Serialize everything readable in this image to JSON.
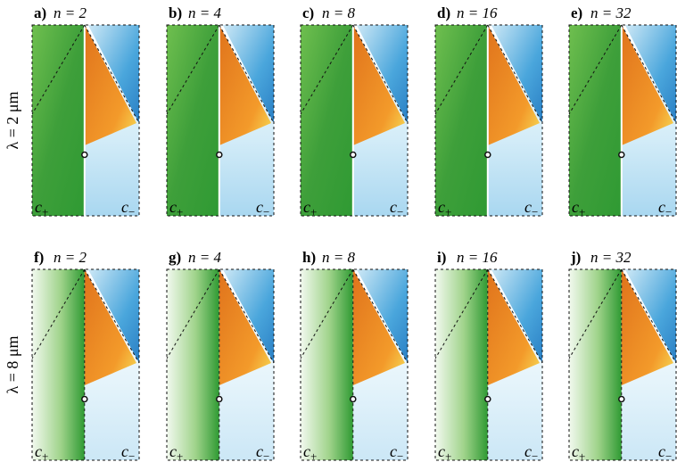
{
  "rows": [
    {
      "label": "λ = 2 μm",
      "panels": [
        {
          "letter": "a)",
          "caption": "n = 2"
        },
        {
          "letter": "b)",
          "caption": "n = 4"
        },
        {
          "letter": "c)",
          "caption": "n = 8"
        },
        {
          "letter": "d)",
          "caption": "n = 16"
        },
        {
          "letter": "e)",
          "caption": "n = 32"
        }
      ]
    },
    {
      "label": "λ = 8 μm",
      "panels": [
        {
          "letter": "f)",
          "caption": "n = 2"
        },
        {
          "letter": "g)",
          "caption": "n = 4"
        },
        {
          "letter": "h)",
          "caption": "n = 8"
        },
        {
          "letter": "i)",
          "caption": "n = 16"
        },
        {
          "letter": "j)",
          "caption": "n = 32"
        }
      ]
    }
  ],
  "corner_labels": {
    "left": {
      "base": "c",
      "sub": "+"
    },
    "right": {
      "base": "c",
      "sub": "−"
    }
  }
}
